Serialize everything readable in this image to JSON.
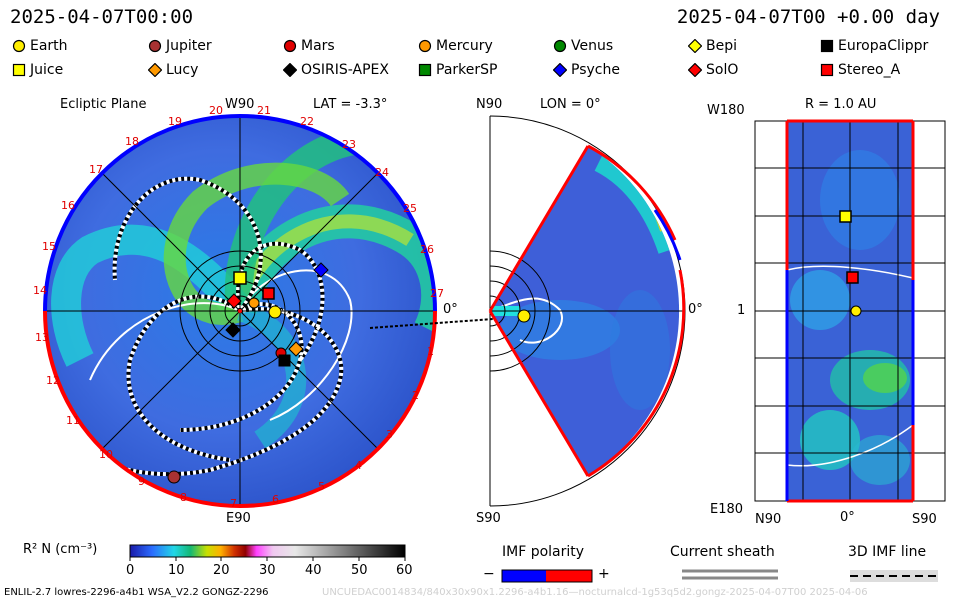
{
  "timestamp_left": "2025-04-07T00:00",
  "timestamp_right": "2025-04-07T00 +0.00 day",
  "legend": [
    {
      "name": "Earth",
      "shape": "circle",
      "color": "#ffee00"
    },
    {
      "name": "Jupiter",
      "shape": "circle",
      "color": "#a83232"
    },
    {
      "name": "Mars",
      "shape": "circle",
      "color": "#e00000"
    },
    {
      "name": "Mercury",
      "shape": "circle",
      "color": "#ff9900"
    },
    {
      "name": "Venus",
      "shape": "circle",
      "color": "#008800"
    },
    {
      "name": "Bepi",
      "shape": "diamond",
      "color": "#ffff00"
    },
    {
      "name": "EuropaClippr",
      "shape": "square",
      "color": "#000000"
    },
    {
      "name": "Juice",
      "shape": "square",
      "color": "#ffff00"
    },
    {
      "name": "Lucy",
      "shape": "diamond",
      "color": "#ff9900"
    },
    {
      "name": "OSIRIS-APEX",
      "shape": "diamond",
      "color": "#000000"
    },
    {
      "name": "ParkerSP",
      "shape": "square",
      "color": "#008800"
    },
    {
      "name": "Psyche",
      "shape": "diamond",
      "color": "#0000ff"
    },
    {
      "name": "SolO",
      "shape": "diamond",
      "color": "#ff0000"
    },
    {
      "name": "Stereo_A",
      "shape": "square",
      "color": "#ff0000"
    }
  ],
  "panel1": {
    "title": "Ecliptic Plane",
    "top_label": "W90",
    "bottom_label": "E90",
    "lat_label": "LAT = -3.3°",
    "zero_label": "0°",
    "numbers": [
      "19",
      "20",
      "21",
      "22",
      "23",
      "24",
      "25",
      "26",
      "27",
      "18",
      "17",
      "16",
      "15",
      "14",
      "13",
      "12",
      "11",
      "10",
      "9",
      "8",
      "7",
      "6",
      "5",
      "4",
      "3",
      "2",
      "1"
    ]
  },
  "panel2": {
    "top_label": "N90",
    "lon_label": "LON = 0°",
    "bottom_label": "S90",
    "zero_label": "0°"
  },
  "panel3": {
    "top_left": "W180",
    "r_label": "R = 1.0 AU",
    "mid_left": "1",
    "bottom_left": "E180",
    "x_left": "N90",
    "x_mid": "0°",
    "x_right": "S90"
  },
  "colorbar": {
    "label": "R² N (cm⁻³)",
    "ticks": [
      "0",
      "10",
      "20",
      "30",
      "40",
      "50",
      "60"
    ]
  },
  "imf": {
    "title": "IMF polarity",
    "minus": "−",
    "plus": "+"
  },
  "sheath": {
    "title": "Current sheath"
  },
  "imf3d": {
    "title": "3D IMF line"
  },
  "footer_left": "ENLIL-2.7 lowres-2296-a4b1 WSA_V2.2 GONGZ-2296",
  "footer_right": "UNCUEDAC0014834/840x30x90x1.2296-a4b1.16—nocturnalcd-1g53q5d2.gongz-2025-04-07T00  2025-04-06"
}
